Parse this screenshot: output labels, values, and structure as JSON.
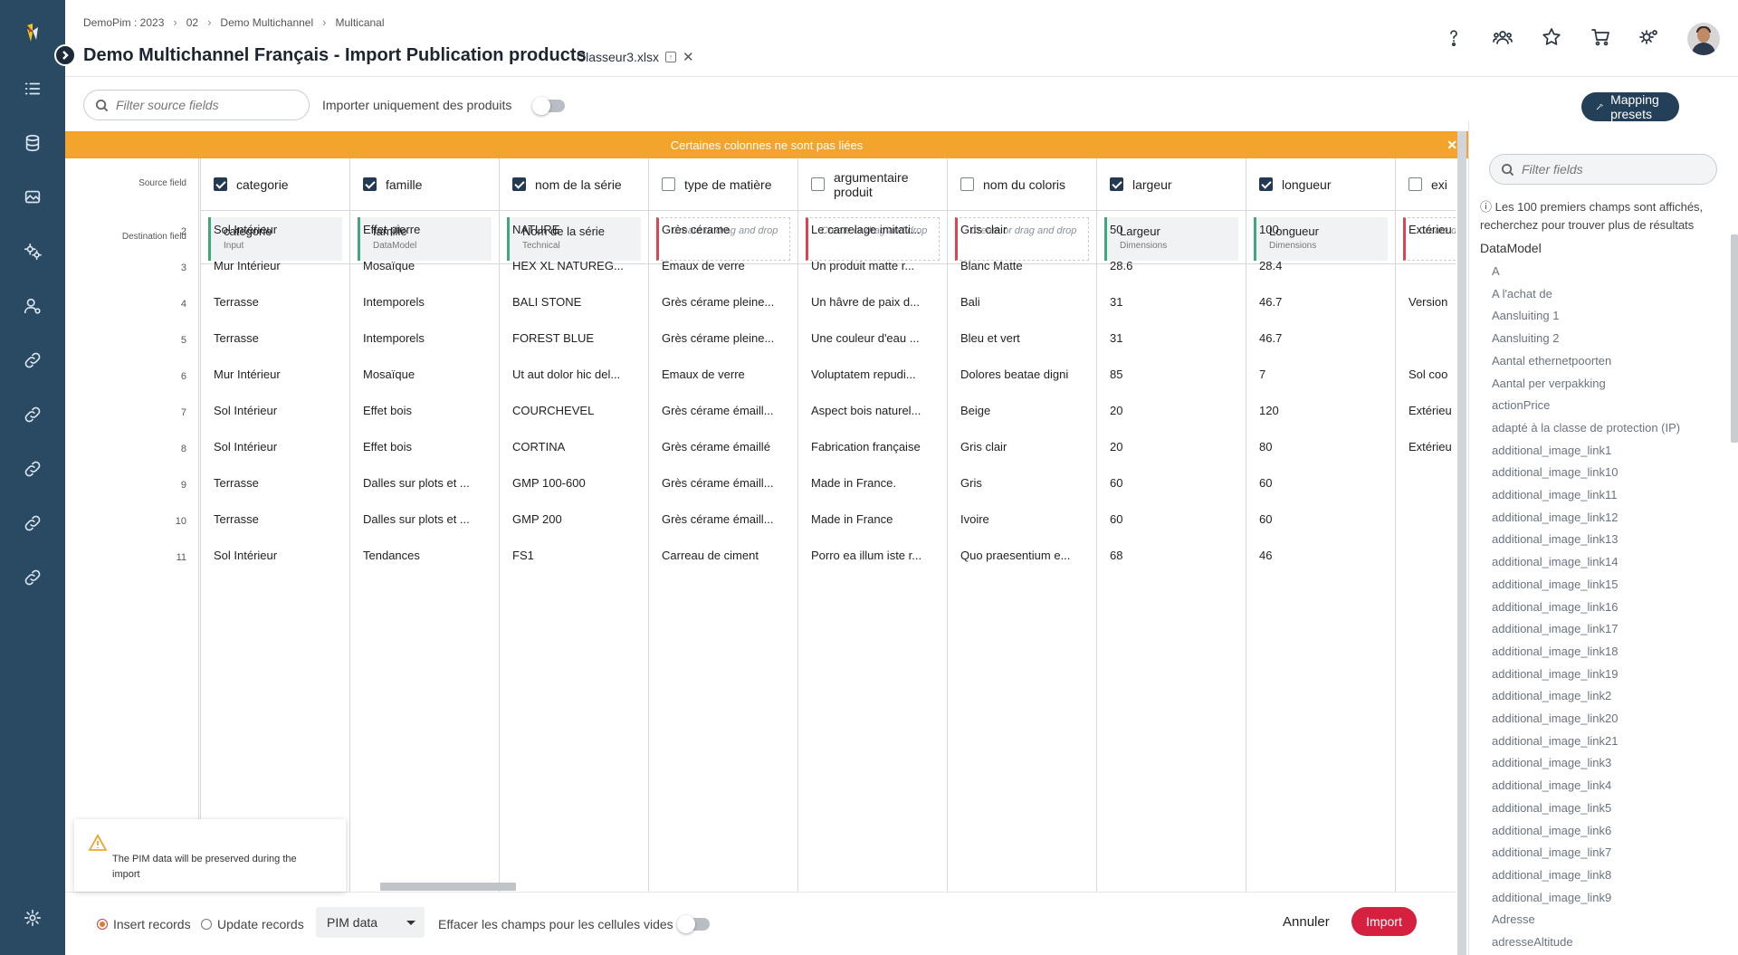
{
  "breadcrumb": [
    "DemoPim : 2023",
    "02",
    "Demo Multichannel",
    "Multicanal"
  ],
  "page_title": "Demo Multichannel Français - Import Publication products",
  "file_name": "Classeur3.xlsx",
  "toolbar": {
    "search_placeholder": "Filter source fields",
    "only_products_label": "Importer uniquement des produits",
    "only_products_on": false,
    "presets_label": "Mapping presets"
  },
  "banner": "Certaines colonnes ne sont pas liées",
  "grid": {
    "source_label": "Source field",
    "dest_label": "Destination field",
    "row_numbers": [
      "2",
      "3",
      "4",
      "5",
      "6",
      "7",
      "8",
      "9",
      "10",
      "11"
    ],
    "columns": [
      {
        "source": "categorie",
        "checked": true,
        "dest": "categorie",
        "dest_type": "Input",
        "cells": [
          "Sol Intérieur",
          "Mur Intérieur",
          "Terrasse",
          "Terrasse",
          "Mur Intérieur",
          "Sol Intérieur",
          "Sol Intérieur",
          "Terrasse",
          "Terrasse",
          "Sol Intérieur"
        ]
      },
      {
        "source": "famille",
        "checked": true,
        "dest": "famille",
        "dest_type": "DataModel",
        "cells": [
          "Effet pierre",
          "Mosaïque",
          "Intemporels",
          "Intemporels",
          "Mosaïque",
          "Effet bois",
          "Effet bois",
          "Dalles sur plots et ...",
          "Dalles sur plots et ...",
          "Tendances"
        ]
      },
      {
        "source": "nom de la série",
        "checked": true,
        "dest": "Nom de la série",
        "dest_type": "Technical",
        "cells": [
          "NATURE",
          "HEX XL NATUREG...",
          "BALI STONE",
          "FOREST BLUE",
          "Ut aut dolor hic del...",
          "COURCHEVEL",
          "CORTINA",
          "GMP 100-600",
          "GMP 200",
          "FS1"
        ]
      },
      {
        "source": "type de matière",
        "checked": false,
        "dest": "",
        "dest_type": "",
        "cells": [
          "Grès cérame",
          "Emaux de verre",
          "Grès cérame pleine...",
          "Grès cérame pleine...",
          "Emaux de verre",
          "Grès cérame émaill...",
          "Grès cérame émaillé",
          "Grès cérame émaill...",
          "Grès cérame émaill...",
          "Carreau de ciment"
        ]
      },
      {
        "source": "argumentaire produit",
        "checked": false,
        "dest": "",
        "dest_type": "",
        "cells": [
          "Le carrelage imitati...",
          "Un produit matte r...",
          "Un hâvre de paix d...",
          "Une couleur d'eau ...",
          "Voluptatem repudi...",
          "Aspect bois naturel...",
          "Fabrication française",
          "Made in France.",
          "Made in France",
          "Porro ea illum iste r..."
        ]
      },
      {
        "source": "nom du coloris",
        "checked": false,
        "dest": "",
        "dest_type": "",
        "cells": [
          "Gris clair",
          "Blanc Matte",
          "Bali",
          "Bleu et vert",
          "Dolores beatae digni",
          "Beige",
          "Gris clair",
          "Gris",
          "Ivoire",
          "Quo praesentium e..."
        ]
      },
      {
        "source": "largeur",
        "checked": true,
        "dest": "Largeur",
        "dest_type": "Dimensions",
        "cells": [
          "50",
          "28.6",
          "31",
          "31",
          "85",
          "20",
          "20",
          "60",
          "60",
          "68"
        ]
      },
      {
        "source": "longueur",
        "checked": true,
        "dest": "Longueur",
        "dest_type": "Dimensions",
        "cells": [
          "100",
          "28.4",
          "46.7",
          "46.7",
          "7",
          "120",
          "80",
          "60",
          "60",
          "46"
        ]
      },
      {
        "source": "exi",
        "checked": false,
        "dest": "",
        "dest_type": "",
        "cells": [
          "Extérieu",
          "",
          "Version",
          "",
          "Sol coo",
          "Extérieu",
          "Extérieu",
          "",
          "",
          ""
        ]
      }
    ],
    "dest_placeholder": "Create or drag and drop",
    "dest_placeholder_short": "Create drop"
  },
  "notice": "The PIM data will be preserved during the import",
  "footer": {
    "insert_label": "Insert records",
    "update_label": "Update records",
    "mode": "insert",
    "select_value": "PIM data",
    "empty_cells_label": "Effacer les champs pour les cellules vides",
    "cancel_label": "Annuler",
    "import_label": "Import"
  },
  "right_panel": {
    "search_placeholder": "Filter fields",
    "info": "ⓘ Les 100 premiers champs sont affichés, recherchez pour trouver plus de résultats",
    "group": "DataModel",
    "fields": [
      "A",
      "A l'achat de",
      "Aansluiting 1",
      "Aansluiting 2",
      "Aantal ethernetpoorten",
      "Aantal per verpakking",
      "actionPrice",
      "adapté à la classe de protection (IP)",
      "additional_image_link1",
      "additional_image_link10",
      "additional_image_link11",
      "additional_image_link12",
      "additional_image_link13",
      "additional_image_link14",
      "additional_image_link15",
      "additional_image_link16",
      "additional_image_link17",
      "additional_image_link18",
      "additional_image_link19",
      "additional_image_link2",
      "additional_image_link20",
      "additional_image_link21",
      "additional_image_link3",
      "additional_image_link4",
      "additional_image_link5",
      "additional_image_link6",
      "additional_image_link7",
      "additional_image_link8",
      "additional_image_link9",
      "Adresse",
      "adresseAltitude"
    ]
  },
  "colors": {
    "sidebar": "#2a4a63",
    "banner": "#f3a42c",
    "import": "#d5213f",
    "mapped": "#3da879",
    "unmapped": "#d94552"
  }
}
